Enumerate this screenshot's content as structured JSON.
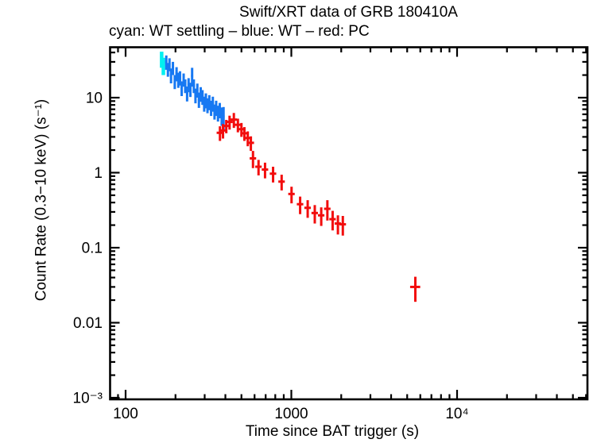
{
  "chart_data": {
    "type": "scatter",
    "title": "Swift/XRT data of GRB 180410A",
    "subtitle": "cyan: WT settling – blue: WT – red: PC",
    "legend_position": "top-left-above-plot",
    "grid": false,
    "x_axis": {
      "label": "Time since BAT trigger (s)",
      "scale": "log",
      "range": [
        80,
        61000
      ],
      "ticks": [
        {
          "value": 100,
          "label": "100"
        },
        {
          "value": 1000,
          "label": "1000"
        },
        {
          "value": 10000,
          "label": "10⁴"
        }
      ]
    },
    "y_axis": {
      "label": "Count Rate (0.3−10 keV) (s⁻¹)",
      "scale": "log",
      "range": [
        0.00095,
        47.5
      ],
      "ticks": [
        {
          "value": 10,
          "label": "10"
        },
        {
          "value": 1,
          "label": "1"
        },
        {
          "value": 0.1,
          "label": "0.1"
        },
        {
          "value": 0.01,
          "label": "0.01"
        },
        {
          "value": 0.001,
          "label": "10⁻³"
        }
      ]
    },
    "colors": {
      "wt_settling": "#00f0f0",
      "wt": "#1778f2",
      "pc": "#f20d0d",
      "axis": "#000000",
      "background": "#ffffff"
    },
    "series": [
      {
        "id": "wt-settling",
        "name": "WT settling",
        "color": "#00f0f0",
        "terr_frac": 0.012,
        "points_format": [
          "time_s",
          "count_rate",
          "rate_err",
          "time_err_frac_optional"
        ],
        "points": [
          [
            165,
            33,
            8
          ],
          [
            169,
            27,
            7
          ]
        ]
      },
      {
        "id": "wt",
        "name": "WT",
        "color": "#1778f2",
        "terr_frac": 0.015,
        "points_format": [
          "time_s",
          "count_rate",
          "rate_err",
          "time_err_frac_optional"
        ],
        "points": [
          [
            176,
            30,
            6.5
          ],
          [
            180,
            24,
            5
          ],
          [
            184,
            28,
            5.5
          ],
          [
            188,
            20,
            4.5
          ],
          [
            193,
            25,
            5
          ],
          [
            198,
            16.5,
            3.5
          ],
          [
            203,
            21,
            4.5
          ],
          [
            208,
            17.5,
            4
          ],
          [
            213,
            18.5,
            4
          ],
          [
            218,
            13.5,
            3
          ],
          [
            224,
            17.5,
            3.5
          ],
          [
            229,
            14.5,
            3
          ],
          [
            235,
            11.5,
            2.6
          ],
          [
            240,
            15,
            3.2
          ],
          [
            246,
            13,
            2.8
          ],
          [
            252,
            19.5,
            5.5
          ],
          [
            258,
            14.5,
            3
          ],
          [
            264,
            10.8,
            2.4
          ],
          [
            271,
            12.7,
            2.7
          ],
          [
            277,
            9.5,
            2.2
          ],
          [
            284,
            11.3,
            2.5
          ],
          [
            291,
            10.3,
            2.3
          ],
          [
            298,
            8.4,
            1.9
          ],
          [
            305,
            9.3,
            2.1
          ],
          [
            312,
            8.0,
            1.8
          ],
          [
            320,
            8.8,
            2.0
          ],
          [
            328,
            7.4,
            1.7
          ],
          [
            336,
            8.4,
            1.9
          ],
          [
            344,
            6.6,
            1.5
          ],
          [
            352,
            7.4,
            1.7
          ],
          [
            361,
            6.3,
            1.5
          ],
          [
            370,
            6.9,
            1.6
          ],
          [
            380,
            5.8,
            1.6
          ],
          [
            390,
            5.6,
            1.9
          ]
        ]
      },
      {
        "id": "pc",
        "name": "PC",
        "color": "#f20d0d",
        "terr_frac": 0.045,
        "points_format": [
          "time_s",
          "count_rate",
          "rate_err",
          "time_err_frac_optional"
        ],
        "points": [
          [
            371,
            3.4,
            0.75
          ],
          [
            387,
            3.65,
            0.8
          ],
          [
            405,
            4.2,
            0.85
          ],
          [
            424,
            4.75,
            1.0
          ],
          [
            450,
            5.1,
            1.15
          ],
          [
            476,
            4.35,
            0.9
          ],
          [
            500,
            3.8,
            0.8
          ],
          [
            521,
            3.35,
            0.7
          ],
          [
            546,
            2.9,
            0.65
          ],
          [
            570,
            2.5,
            0.55
          ],
          [
            587,
            1.55,
            0.4
          ],
          [
            634,
            1.2,
            0.28
          ],
          [
            694,
            1.1,
            0.26
          ],
          [
            776,
            0.97,
            0.23
          ],
          [
            874,
            0.76,
            0.18
          ],
          [
            1003,
            0.52,
            0.13
          ],
          [
            1130,
            0.38,
            0.1
          ],
          [
            1255,
            0.34,
            0.09
          ],
          [
            1385,
            0.29,
            0.08
          ],
          [
            1515,
            0.27,
            0.075
          ],
          [
            1650,
            0.33,
            0.1
          ],
          [
            1775,
            0.24,
            0.07
          ],
          [
            1910,
            0.21,
            0.06
          ],
          [
            2045,
            0.205,
            0.06
          ],
          [
            5600,
            0.03,
            0.011,
            0.07
          ]
        ]
      }
    ]
  }
}
